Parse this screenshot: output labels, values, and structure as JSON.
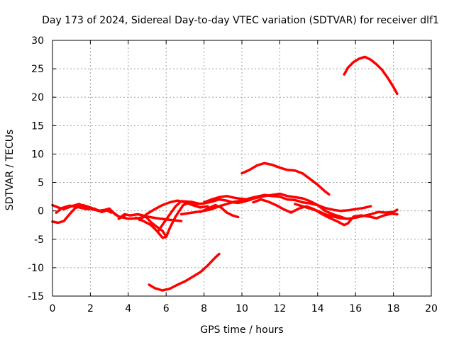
{
  "chart_data": {
    "type": "line",
    "title": "Day 173 of 2024, Sidereal Day-to-day VTEC variation (SDTVAR) for receiver dlf1",
    "xlabel": "GPS time / hours",
    "ylabel": "SDTVAR / TECUs",
    "xlim": [
      0,
      20
    ],
    "ylim": [
      -15,
      30
    ],
    "x_ticks": [
      0,
      2,
      4,
      6,
      8,
      10,
      12,
      14,
      16,
      18,
      20
    ],
    "y_ticks": [
      -15,
      -10,
      -5,
      0,
      5,
      10,
      15,
      20,
      25,
      30
    ],
    "grid": true,
    "legend": "none",
    "series_color": "#ff0000",
    "series": [
      {
        "name": "s1",
        "points": [
          [
            0.0,
            1.0
          ],
          [
            0.3,
            0.6
          ],
          [
            0.6,
            0.3
          ],
          [
            1.0,
            0.8
          ],
          [
            1.4,
            1.2
          ],
          [
            1.8,
            0.6
          ],
          [
            2.2,
            0.2
          ],
          [
            2.6,
            0.0
          ],
          [
            3.0,
            0.4
          ],
          [
            3.3,
            -0.6
          ],
          [
            3.6,
            -1.2
          ],
          [
            3.8,
            -1.0
          ]
        ]
      },
      {
        "name": "s2",
        "points": [
          [
            0.0,
            -1.9
          ],
          [
            0.3,
            -2.1
          ],
          [
            0.6,
            -1.8
          ],
          [
            0.9,
            -0.6
          ],
          [
            1.2,
            0.5
          ],
          [
            1.6,
            1.0
          ],
          [
            2.0,
            0.6
          ],
          [
            2.4,
            0.0
          ],
          [
            2.8,
            0.2
          ],
          [
            3.1,
            -0.3
          ]
        ]
      },
      {
        "name": "s3",
        "points": [
          [
            0.2,
            -0.3
          ],
          [
            0.5,
            0.5
          ],
          [
            0.9,
            0.9
          ],
          [
            1.3,
            0.7
          ],
          [
            1.8,
            0.3
          ],
          [
            2.2,
            0.4
          ],
          [
            2.6,
            -0.2
          ],
          [
            3.0,
            0.2
          ],
          [
            3.5,
            -1.0
          ],
          [
            4.0,
            -1.4
          ],
          [
            4.5,
            -1.3
          ],
          [
            5.0,
            -1.0
          ],
          [
            5.5,
            -1.3
          ],
          [
            6.0,
            -1.5
          ],
          [
            6.5,
            -1.7
          ],
          [
            6.8,
            -1.8
          ]
        ]
      },
      {
        "name": "s4",
        "points": [
          [
            3.5,
            -1.4
          ],
          [
            3.8,
            -0.6
          ],
          [
            4.1,
            -0.8
          ],
          [
            4.5,
            -0.6
          ],
          [
            4.9,
            -0.9
          ],
          [
            5.2,
            -2.0
          ],
          [
            5.5,
            -2.8
          ],
          [
            5.8,
            -3.5
          ],
          [
            6.0,
            -4.5
          ]
        ]
      },
      {
        "name": "s5",
        "points": [
          [
            4.4,
            -1.2
          ],
          [
            4.8,
            -1.8
          ],
          [
            5.2,
            -2.5
          ],
          [
            5.5,
            -3.5
          ],
          [
            5.8,
            -4.7
          ],
          [
            6.0,
            -4.6
          ],
          [
            6.2,
            -3.0
          ],
          [
            6.5,
            -1.0
          ],
          [
            6.9,
            1.0
          ],
          [
            7.3,
            1.6
          ],
          [
            7.8,
            1.2
          ]
        ]
      },
      {
        "name": "s6",
        "points": [
          [
            4.6,
            -1.6
          ],
          [
            5.0,
            -0.5
          ],
          [
            5.4,
            0.3
          ],
          [
            5.8,
            1.0
          ],
          [
            6.2,
            1.5
          ],
          [
            6.6,
            1.8
          ],
          [
            7.0,
            1.5
          ],
          [
            7.4,
            1.0
          ],
          [
            7.8,
            0.6
          ],
          [
            8.2,
            0.8
          ]
        ]
      },
      {
        "name": "s7",
        "points": [
          [
            5.6,
            -3.5
          ],
          [
            5.9,
            -2.0
          ],
          [
            6.2,
            -0.6
          ],
          [
            6.5,
            0.8
          ],
          [
            6.8,
            1.7
          ],
          [
            7.2,
            1.6
          ],
          [
            7.6,
            1.2
          ],
          [
            8.0,
            1.3
          ],
          [
            8.4,
            1.6
          ],
          [
            8.8,
            2.0
          ],
          [
            9.2,
            1.8
          ],
          [
            9.5,
            1.5
          ],
          [
            9.8,
            1.4
          ],
          [
            10.2,
            1.7
          ],
          [
            10.5,
            2.0
          ]
        ]
      },
      {
        "name": "s8",
        "points": [
          [
            6.8,
            -0.6
          ],
          [
            7.2,
            -0.4
          ],
          [
            7.6,
            -0.2
          ],
          [
            8.0,
            0.0
          ],
          [
            8.4,
            0.3
          ],
          [
            8.8,
            0.8
          ],
          [
            9.2,
            1.2
          ],
          [
            9.6,
            1.6
          ],
          [
            10.0,
            1.8
          ],
          [
            10.4,
            2.2
          ],
          [
            10.8,
            2.5
          ],
          [
            11.2,
            2.8
          ],
          [
            11.6,
            2.6
          ],
          [
            12.0,
            2.5
          ],
          [
            12.4,
            2.0
          ],
          [
            12.8,
            1.9
          ],
          [
            13.2,
            1.5
          ],
          [
            13.6,
            1.3
          ],
          [
            14.0,
            1.0
          ],
          [
            14.4,
            0.5
          ],
          [
            14.8,
            0.2
          ],
          [
            15.2,
            0.0
          ],
          [
            15.6,
            0.1
          ],
          [
            16.0,
            0.3
          ],
          [
            16.4,
            0.5
          ],
          [
            16.8,
            0.8
          ]
        ]
      },
      {
        "name": "s9",
        "points": [
          [
            8.0,
            1.5
          ],
          [
            8.4,
            2.0
          ],
          [
            8.8,
            2.4
          ],
          [
            9.2,
            2.6
          ],
          [
            9.6,
            2.3
          ],
          [
            10.0,
            2.1
          ],
          [
            10.4,
            2.0
          ],
          [
            10.8,
            2.3
          ],
          [
            11.2,
            2.6
          ],
          [
            11.6,
            2.8
          ],
          [
            12.0,
            3.0
          ],
          [
            12.4,
            2.6
          ],
          [
            12.8,
            2.4
          ],
          [
            13.2,
            2.2
          ],
          [
            13.6,
            1.7
          ],
          [
            14.0,
            1.0
          ],
          [
            14.4,
            0.0
          ],
          [
            14.8,
            -0.6
          ],
          [
            15.2,
            -1.0
          ],
          [
            15.5,
            -1.4
          ]
        ]
      },
      {
        "name": "s10",
        "points": [
          [
            7.8,
            -0.2
          ],
          [
            8.2,
            0.4
          ],
          [
            8.6,
            1.0
          ],
          [
            8.9,
            0.6
          ],
          [
            9.2,
            -0.3
          ],
          [
            9.5,
            -0.8
          ],
          [
            9.8,
            -1.1
          ]
        ]
      },
      {
        "name": "s11",
        "points": [
          [
            10.6,
            1.5
          ],
          [
            11.0,
            2.0
          ],
          [
            11.4,
            1.6
          ],
          [
            11.8,
            1.0
          ],
          [
            12.2,
            0.3
          ],
          [
            12.6,
            -0.3
          ],
          [
            13.0,
            0.4
          ],
          [
            13.4,
            0.8
          ],
          [
            13.8,
            0.3
          ],
          [
            14.2,
            -0.5
          ],
          [
            14.6,
            -1.2
          ],
          [
            15.0,
            -1.8
          ],
          [
            15.4,
            -2.5
          ],
          [
            15.6,
            -2.2
          ],
          [
            15.9,
            -1.0
          ],
          [
            16.3,
            -0.8
          ],
          [
            16.7,
            -1.0
          ],
          [
            17.1,
            -1.3
          ],
          [
            17.5,
            -0.8
          ],
          [
            17.9,
            -0.5
          ],
          [
            18.2,
            -0.6
          ]
        ]
      },
      {
        "name": "s12",
        "points": [
          [
            12.8,
            1.2
          ],
          [
            13.2,
            0.8
          ],
          [
            13.6,
            0.4
          ],
          [
            14.0,
            0.0
          ],
          [
            14.4,
            -0.6
          ],
          [
            14.8,
            -1.0
          ],
          [
            15.2,
            -1.3
          ],
          [
            15.6,
            -1.4
          ],
          [
            16.0,
            -1.2
          ],
          [
            16.4,
            -0.9
          ],
          [
            16.8,
            -0.6
          ],
          [
            17.2,
            -0.2
          ],
          [
            17.6,
            -0.3
          ],
          [
            18.0,
            -0.2
          ],
          [
            18.2,
            0.2
          ]
        ]
      },
      {
        "name": "s13",
        "points": [
          [
            10.0,
            6.6
          ],
          [
            10.4,
            7.2
          ],
          [
            10.8,
            8.0
          ],
          [
            11.2,
            8.4
          ],
          [
            11.6,
            8.1
          ],
          [
            12.0,
            7.6
          ],
          [
            12.4,
            7.2
          ],
          [
            12.8,
            7.1
          ],
          [
            13.2,
            6.6
          ],
          [
            13.6,
            5.6
          ],
          [
            14.0,
            4.6
          ],
          [
            14.4,
            3.4
          ],
          [
            14.6,
            2.9
          ]
        ]
      },
      {
        "name": "s14",
        "points": [
          [
            5.1,
            -13.0
          ],
          [
            5.4,
            -13.6
          ],
          [
            5.8,
            -14.0
          ],
          [
            6.2,
            -13.7
          ],
          [
            6.6,
            -13.0
          ],
          [
            7.0,
            -12.4
          ],
          [
            7.4,
            -11.6
          ],
          [
            7.8,
            -10.8
          ],
          [
            8.2,
            -9.6
          ],
          [
            8.6,
            -8.2
          ],
          [
            8.8,
            -7.6
          ]
        ]
      },
      {
        "name": "s15",
        "points": [
          [
            15.4,
            24.0
          ],
          [
            15.6,
            25.2
          ],
          [
            15.9,
            26.2
          ],
          [
            16.2,
            26.8
          ],
          [
            16.5,
            27.1
          ],
          [
            16.8,
            26.6
          ],
          [
            17.1,
            25.8
          ],
          [
            17.4,
            24.8
          ],
          [
            17.7,
            23.4
          ],
          [
            18.0,
            21.8
          ],
          [
            18.2,
            20.6
          ]
        ]
      }
    ]
  }
}
